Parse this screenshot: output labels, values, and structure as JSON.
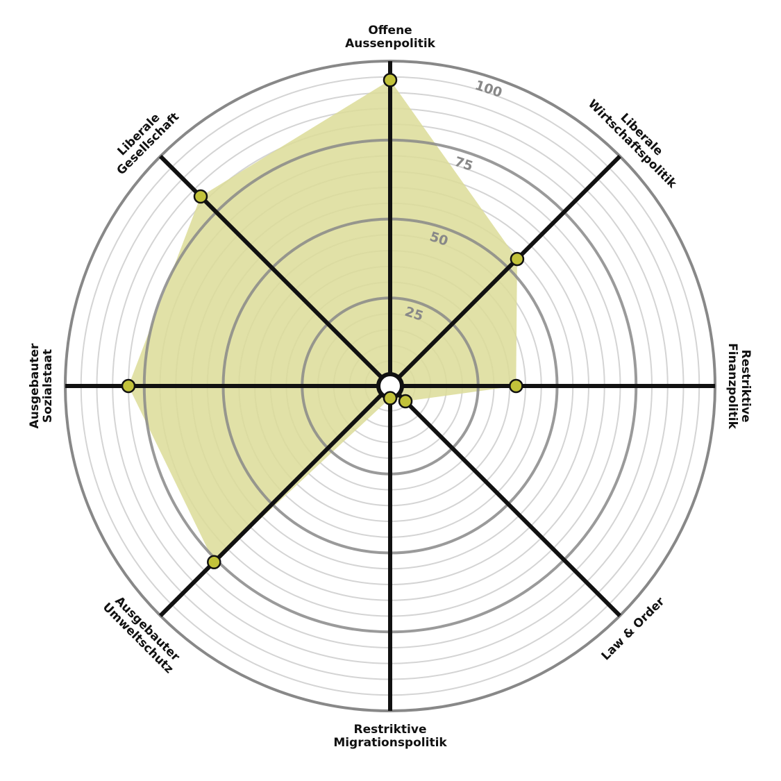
{
  "chart_data": {
    "type": "radar",
    "axes": [
      {
        "label": [
          "Offene",
          "Aussenpolitik"
        ],
        "value": 94
      },
      {
        "label": [
          "Liberale",
          "Wirtschaftspolitik"
        ],
        "value": 54
      },
      {
        "label": [
          "Restriktive",
          "Finanzpolitik"
        ],
        "value": 37
      },
      {
        "label": [
          "Law & Order"
        ],
        "value": 4
      },
      {
        "label": [
          "Restriktive",
          "Migrationspolitik"
        ],
        "value": 1
      },
      {
        "label": [
          "Ausgebauter",
          "Umweltschutz"
        ],
        "value": 76
      },
      {
        "label": [
          "Ausgebauter",
          "Sozialstaat"
        ],
        "value": 80
      },
      {
        "label": [
          "Liberale",
          "Gesellschaft"
        ],
        "value": 82
      }
    ],
    "rlim": [
      0,
      100
    ],
    "ticks": [
      25,
      50,
      75,
      100
    ],
    "minor_tick_step": 5,
    "colors": {
      "fill": "#dcdc98",
      "point": "#c2c23a",
      "axis": "#111111",
      "major_ring": "#888888",
      "minor_ring": "#d4d4d4"
    }
  }
}
